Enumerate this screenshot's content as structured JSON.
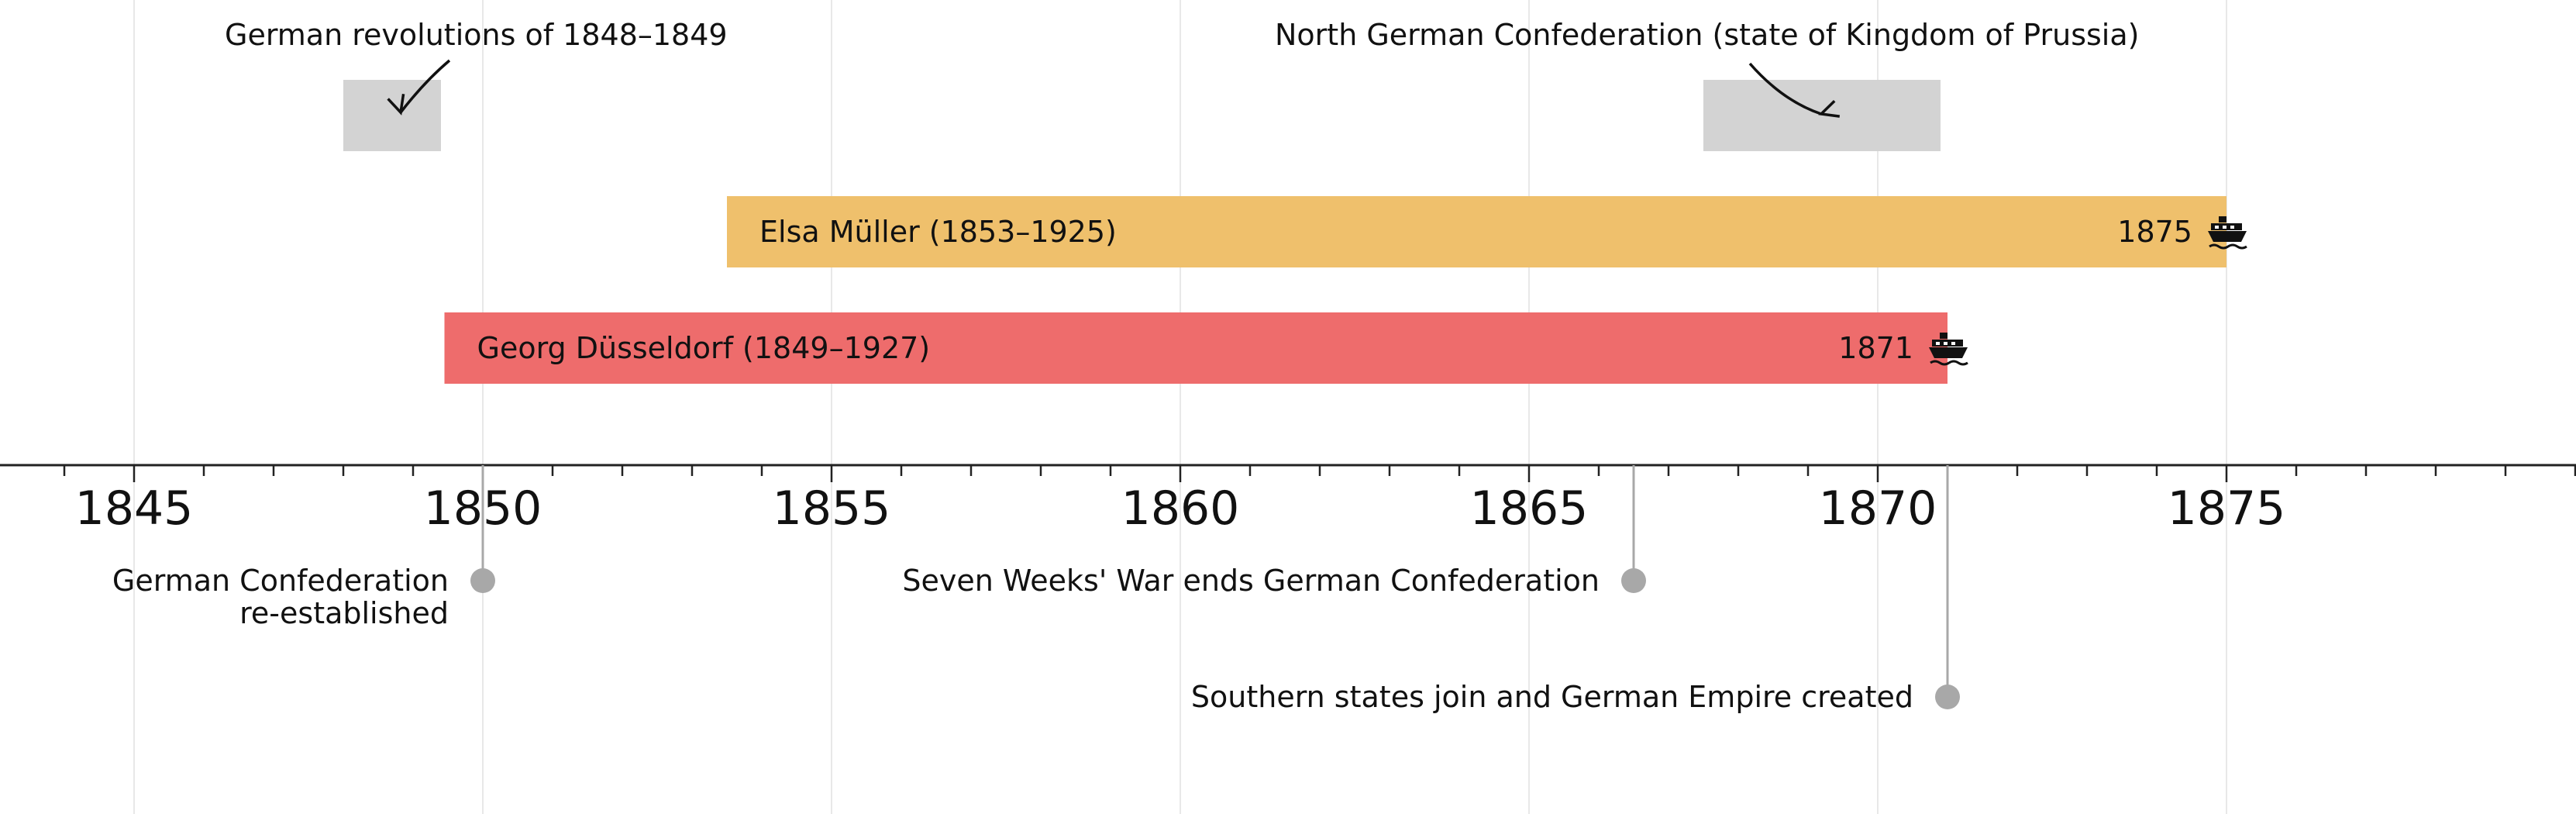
{
  "chart_data": {
    "type": "timeline",
    "x_range": [
      1843.0,
      1880.0
    ],
    "x_ticks": [
      1845,
      1850,
      1855,
      1860,
      1865,
      1870,
      1875
    ],
    "x_tick_labels": [
      "1845",
      "1850",
      "1855",
      "1860",
      "1865",
      "1870",
      "1875"
    ],
    "minor_tick_step": 1,
    "grid": true,
    "periods": [
      {
        "label": "German revolutions of 1848–1849",
        "start": 1848.0,
        "end": 1849.4
      },
      {
        "label": "North German Confederation (state of Kingdom of Prussia)",
        "start": 1867.5,
        "end": 1870.9
      }
    ],
    "bars": [
      {
        "label": "Elsa Müller (1853–1925)",
        "start": 1853.5,
        "end": 1875.0,
        "color": "#EFC06C",
        "end_label": "1875",
        "end_icon": "ship-icon"
      },
      {
        "label": "Georg Düsseldorf (1849–1927)",
        "start": 1849.45,
        "end": 1871.0,
        "color": "#EE6C6C",
        "end_label": "1871",
        "end_icon": "ship-icon"
      }
    ],
    "events": [
      {
        "date": 1850.0,
        "label_lines": [
          "German Confederation",
          "re-established"
        ],
        "level": 1
      },
      {
        "date": 1866.5,
        "label_lines": [
          "Seven Weeks' War ends German Confederation"
        ],
        "level": 1
      },
      {
        "date": 1871.0,
        "label_lines": [
          "Southern states join and German Empire created"
        ],
        "level": 2
      }
    ],
    "colors": {
      "period": "#D3D3D3",
      "axis": "#222222",
      "grid": "#E8E8E8",
      "event_marker": "#A8A8A8"
    }
  }
}
